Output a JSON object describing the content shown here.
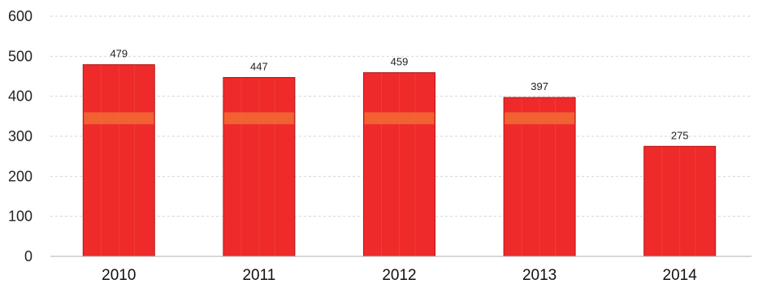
{
  "chart_data": {
    "type": "bar",
    "categories": [
      "2010",
      "2011",
      "2012",
      "2013",
      "2014"
    ],
    "values": [
      479,
      447,
      459,
      397,
      275
    ],
    "data_labels": [
      "479",
      "447",
      "459",
      "397",
      "275"
    ],
    "yticks": [
      "0",
      "100",
      "200",
      "300",
      "400",
      "500",
      "600"
    ],
    "ylim": [
      0,
      600
    ],
    "grid": true,
    "legend": "none",
    "bar_color": "#ee2a2a",
    "bar_band_color": "#f6a33a"
  }
}
